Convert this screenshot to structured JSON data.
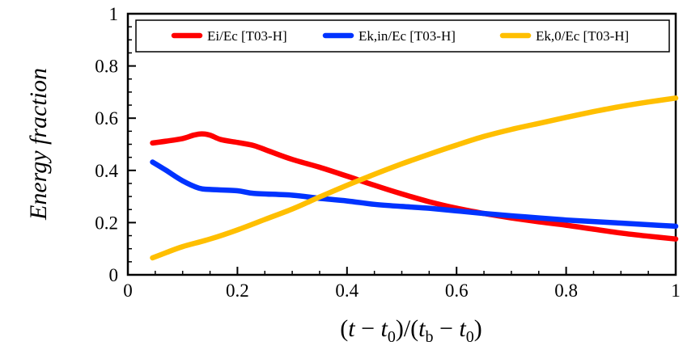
{
  "chart_data": {
    "type": "line",
    "title": "",
    "xlabel": "(t − t0)/(tb − t0)",
    "xlabel_parts": {
      "open": "(",
      "t1": "t",
      "minus1": " − ",
      "t0a": "t",
      "sub0a": "0",
      "mid": ")/(",
      "tb": "t",
      "subb": "b",
      "minus2": " − ",
      "t0b": "t",
      "sub0b": "0",
      "close": ")"
    },
    "ylabel": "Energy fraction",
    "xlim": [
      0,
      1
    ],
    "ylim": [
      0,
      1
    ],
    "xticks": [
      0,
      0.2,
      0.4,
      0.6,
      0.8,
      1
    ],
    "xtick_labels": [
      "0",
      "0.2",
      "0.4",
      "0.6",
      "0.8",
      "1"
    ],
    "yticks": [
      0,
      0.2,
      0.4,
      0.6,
      0.8,
      1
    ],
    "ytick_labels": [
      "0",
      "0.2",
      "0.4",
      "0.6",
      "0.8",
      "1"
    ],
    "minor_tick_step": 0.05,
    "grid": false,
    "legend_position": "top",
    "series": [
      {
        "name": "Ei/Ec [T03-H]",
        "color": "#ff0000",
        "x": [
          0.045,
          0.07,
          0.1,
          0.12,
          0.135,
          0.15,
          0.17,
          0.2,
          0.23,
          0.26,
          0.3,
          0.35,
          0.4,
          0.45,
          0.5,
          0.55,
          0.6,
          0.65,
          0.7,
          0.75,
          0.8,
          0.85,
          0.9,
          0.95,
          1.0
        ],
        "y": [
          0.505,
          0.512,
          0.522,
          0.535,
          0.54,
          0.535,
          0.518,
          0.507,
          0.495,
          0.472,
          0.442,
          0.412,
          0.378,
          0.343,
          0.31,
          0.28,
          0.255,
          0.235,
          0.218,
          0.203,
          0.19,
          0.175,
          0.16,
          0.148,
          0.137
        ]
      },
      {
        "name": "Ek,in/Ec [T03-H]",
        "color": "#0033ff",
        "x": [
          0.045,
          0.07,
          0.1,
          0.13,
          0.15,
          0.2,
          0.23,
          0.3,
          0.35,
          0.4,
          0.45,
          0.5,
          0.55,
          0.6,
          0.65,
          0.7,
          0.75,
          0.8,
          0.85,
          0.9,
          0.95,
          1.0
        ],
        "y": [
          0.432,
          0.4,
          0.36,
          0.332,
          0.327,
          0.322,
          0.312,
          0.305,
          0.293,
          0.283,
          0.27,
          0.262,
          0.255,
          0.245,
          0.235,
          0.226,
          0.218,
          0.21,
          0.204,
          0.198,
          0.192,
          0.186
        ]
      },
      {
        "name": "Ek,0/Ec [T03-H]",
        "color": "#ffbf00",
        "x": [
          0.045,
          0.07,
          0.1,
          0.15,
          0.2,
          0.25,
          0.3,
          0.35,
          0.4,
          0.45,
          0.5,
          0.55,
          0.6,
          0.65,
          0.7,
          0.75,
          0.8,
          0.85,
          0.9,
          0.95,
          1.0
        ],
        "y": [
          0.065,
          0.085,
          0.108,
          0.137,
          0.172,
          0.212,
          0.252,
          0.298,
          0.343,
          0.385,
          0.425,
          0.462,
          0.497,
          0.53,
          0.557,
          0.58,
          0.603,
          0.625,
          0.645,
          0.662,
          0.677
        ]
      }
    ]
  }
}
